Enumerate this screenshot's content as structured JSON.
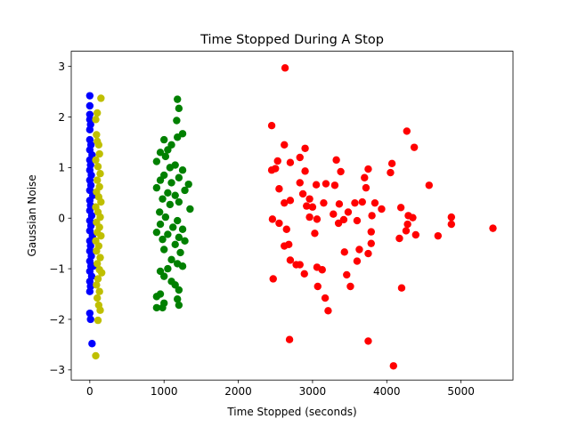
{
  "chart_data": {
    "type": "scatter",
    "title": "Time Stopped During A Stop",
    "xlabel": "Time Stopped (seconds)",
    "ylabel": "Gaussian Noise",
    "xlim": [
      -250,
      5700
    ],
    "ylim": [
      -3.2,
      3.3
    ],
    "x_ticks": [
      0,
      1000,
      2000,
      3000,
      4000,
      5000
    ],
    "y_ticks": [
      -3,
      -2,
      -1,
      0,
      1,
      2,
      3
    ],
    "grid": false,
    "legend": "none",
    "series": [
      {
        "color": "#0000ff",
        "points": [
          [
            0,
            2.42
          ],
          [
            0,
            2.22
          ],
          [
            0,
            2.05
          ],
          [
            0,
            1.95
          ],
          [
            0,
            1.75
          ],
          [
            0,
            1.55
          ],
          [
            0,
            1.35
          ],
          [
            0,
            1.15
          ],
          [
            0,
            0.95
          ],
          [
            0,
            0.75
          ],
          [
            0,
            0.55
          ],
          [
            0,
            0.35
          ],
          [
            0,
            0.15
          ],
          [
            0,
            -0.05
          ],
          [
            0,
            -0.25
          ],
          [
            0,
            -0.45
          ],
          [
            0,
            -0.65
          ],
          [
            0,
            -0.85
          ],
          [
            0,
            -1.05
          ],
          [
            0,
            -1.25
          ],
          [
            0,
            -1.45
          ],
          [
            10,
            1.85
          ],
          [
            15,
            1.45
          ],
          [
            10,
            1.05
          ],
          [
            15,
            0.65
          ],
          [
            10,
            0.25
          ],
          [
            15,
            -0.15
          ],
          [
            10,
            -0.55
          ],
          [
            15,
            -0.95
          ],
          [
            10,
            -1.35
          ],
          [
            20,
            0.85
          ],
          [
            25,
            0.05
          ],
          [
            20,
            -0.75
          ],
          [
            30,
            1.25
          ],
          [
            35,
            -0.35
          ],
          [
            25,
            -1.15
          ],
          [
            40,
            0.45
          ],
          [
            45,
            -0.95
          ],
          [
            0,
            -1.88
          ],
          [
            10,
            -2.0
          ],
          [
            30,
            -2.48
          ]
        ]
      },
      {
        "color": "#bfbf00",
        "points": [
          [
            150,
            2.37
          ],
          [
            100,
            2.08
          ],
          [
            80,
            1.95
          ],
          [
            90,
            1.65
          ],
          [
            100,
            1.52
          ],
          [
            120,
            1.45
          ],
          [
            130,
            1.27
          ],
          [
            80,
            1.15
          ],
          [
            110,
            1.02
          ],
          [
            140,
            0.88
          ],
          [
            100,
            0.75
          ],
          [
            130,
            0.62
          ],
          [
            90,
            0.52
          ],
          [
            120,
            0.42
          ],
          [
            150,
            0.32
          ],
          [
            80,
            0.22
          ],
          [
            110,
            0.12
          ],
          [
            140,
            0.02
          ],
          [
            90,
            -0.08
          ],
          [
            130,
            -0.18
          ],
          [
            100,
            -0.28
          ],
          [
            150,
            -0.35
          ],
          [
            80,
            -0.45
          ],
          [
            120,
            -0.55
          ],
          [
            90,
            -0.65
          ],
          [
            140,
            -0.78
          ],
          [
            100,
            -0.9
          ],
          [
            130,
            -1.02
          ],
          [
            160,
            -1.08
          ],
          [
            110,
            -1.2
          ],
          [
            90,
            -1.32
          ],
          [
            130,
            -1.45
          ],
          [
            100,
            -1.58
          ],
          [
            120,
            -1.72
          ],
          [
            140,
            -1.82
          ],
          [
            110,
            -2.02
          ],
          [
            80,
            -2.72
          ]
        ]
      },
      {
        "color": "#008000",
        "points": [
          [
            1180,
            2.35
          ],
          [
            1200,
            2.17
          ],
          [
            1170,
            1.93
          ],
          [
            1250,
            1.67
          ],
          [
            1180,
            1.6
          ],
          [
            1000,
            1.55
          ],
          [
            1100,
            1.45
          ],
          [
            1050,
            1.35
          ],
          [
            950,
            1.3
          ],
          [
            1020,
            1.22
          ],
          [
            900,
            1.12
          ],
          [
            1150,
            1.05
          ],
          [
            1080,
            1.0
          ],
          [
            1250,
            0.95
          ],
          [
            1000,
            0.85
          ],
          [
            1200,
            0.8
          ],
          [
            950,
            0.75
          ],
          [
            1100,
            0.7
          ],
          [
            1330,
            0.67
          ],
          [
            1280,
            0.55
          ],
          [
            900,
            0.6
          ],
          [
            1050,
            0.5
          ],
          [
            1150,
            0.45
          ],
          [
            980,
            0.38
          ],
          [
            1200,
            0.32
          ],
          [
            1080,
            0.27
          ],
          [
            1350,
            0.18
          ],
          [
            940,
            0.12
          ],
          [
            1020,
            0.02
          ],
          [
            1180,
            -0.05
          ],
          [
            950,
            -0.12
          ],
          [
            1120,
            -0.18
          ],
          [
            1250,
            -0.22
          ],
          [
            900,
            -0.28
          ],
          [
            1050,
            -0.32
          ],
          [
            1200,
            -0.38
          ],
          [
            980,
            -0.42
          ],
          [
            1280,
            -0.45
          ],
          [
            1150,
            -0.52
          ],
          [
            1000,
            -0.62
          ],
          [
            1220,
            -0.68
          ],
          [
            1100,
            -0.82
          ],
          [
            1180,
            -0.9
          ],
          [
            1050,
            -1.0
          ],
          [
            950,
            -1.05
          ],
          [
            1250,
            -0.95
          ],
          [
            1000,
            -1.15
          ],
          [
            1100,
            -1.25
          ],
          [
            1150,
            -1.32
          ],
          [
            1200,
            -1.42
          ],
          [
            950,
            -1.5
          ],
          [
            900,
            -1.55
          ],
          [
            1180,
            -1.6
          ],
          [
            1000,
            -1.68
          ],
          [
            1200,
            -1.72
          ],
          [
            900,
            -1.77
          ],
          [
            980,
            -1.77
          ]
        ]
      },
      {
        "color": "#ff0000",
        "points": [
          [
            2630,
            2.97
          ],
          [
            4270,
            1.72
          ],
          [
            2450,
            1.83
          ],
          [
            4370,
            1.4
          ],
          [
            2620,
            1.45
          ],
          [
            2900,
            1.38
          ],
          [
            2830,
            1.2
          ],
          [
            3320,
            1.15
          ],
          [
            2530,
            1.13
          ],
          [
            2700,
            1.1
          ],
          [
            4070,
            1.08
          ],
          [
            3750,
            0.97
          ],
          [
            2450,
            0.95
          ],
          [
            2500,
            0.98
          ],
          [
            3380,
            0.92
          ],
          [
            4050,
            0.9
          ],
          [
            2900,
            0.93
          ],
          [
            3700,
            0.8
          ],
          [
            4570,
            0.65
          ],
          [
            3180,
            0.68
          ],
          [
            3050,
            0.66
          ],
          [
            3300,
            0.65
          ],
          [
            2830,
            0.7
          ],
          [
            2550,
            0.58
          ],
          [
            3720,
            0.6
          ],
          [
            2870,
            0.48
          ],
          [
            2960,
            0.38
          ],
          [
            2700,
            0.35
          ],
          [
            3570,
            0.3
          ],
          [
            3670,
            0.32
          ],
          [
            3150,
            0.3
          ],
          [
            3360,
            0.28
          ],
          [
            2620,
            0.3
          ],
          [
            3840,
            0.3
          ],
          [
            4190,
            0.21
          ],
          [
            3000,
            0.22
          ],
          [
            2920,
            0.24
          ],
          [
            4290,
            0.05
          ],
          [
            3930,
            0.18
          ],
          [
            4870,
            0.02
          ],
          [
            4350,
            0.01
          ],
          [
            3480,
            0.12
          ],
          [
            3800,
            0.05
          ],
          [
            3280,
            0.08
          ],
          [
            2460,
            -0.02
          ],
          [
            3600,
            -0.05
          ],
          [
            4280,
            -0.12
          ],
          [
            2550,
            -0.1
          ],
          [
            2960,
            0.02
          ],
          [
            3060,
            -0.02
          ],
          [
            3420,
            -0.03
          ],
          [
            4260,
            -0.25
          ],
          [
            4870,
            -0.12
          ],
          [
            3350,
            -0.1
          ],
          [
            5430,
            -0.2
          ],
          [
            2650,
            -0.22
          ],
          [
            3030,
            -0.3
          ],
          [
            4390,
            -0.33
          ],
          [
            4690,
            -0.35
          ],
          [
            3790,
            -0.27
          ],
          [
            4170,
            -0.4
          ],
          [
            2620,
            -0.55
          ],
          [
            2680,
            -0.52
          ],
          [
            3790,
            -0.5
          ],
          [
            3630,
            -0.62
          ],
          [
            3750,
            -0.7
          ],
          [
            3430,
            -0.67
          ],
          [
            3600,
            -0.85
          ],
          [
            2700,
            -0.83
          ],
          [
            2780,
            -0.92
          ],
          [
            2830,
            -0.92
          ],
          [
            3060,
            -0.97
          ],
          [
            3130,
            -1.02
          ],
          [
            2890,
            -1.1
          ],
          [
            3460,
            -1.12
          ],
          [
            2470,
            -1.2
          ],
          [
            3070,
            -1.35
          ],
          [
            3510,
            -1.35
          ],
          [
            4200,
            -1.38
          ],
          [
            3170,
            -1.58
          ],
          [
            3210,
            -1.83
          ],
          [
            2690,
            -2.4
          ],
          [
            3750,
            -2.43
          ],
          [
            4090,
            -2.92
          ]
        ]
      }
    ]
  }
}
